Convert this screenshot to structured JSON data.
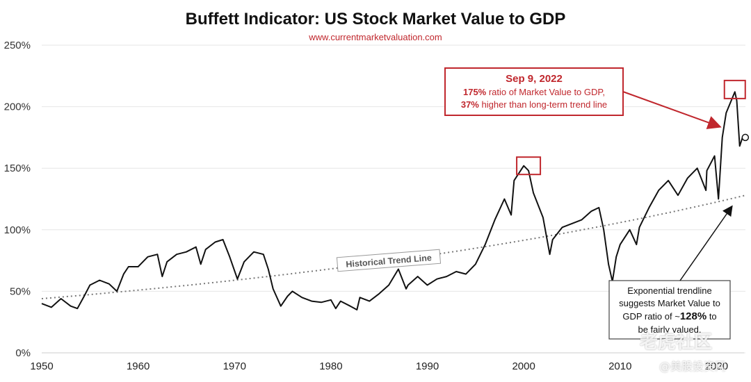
{
  "chart_data": {
    "type": "line",
    "title": "Buffett Indicator: US Stock Market Value to GDP",
    "subtitle": "www.currentmarketvaluation.com",
    "xlabel": "",
    "ylabel": "",
    "xlim": [
      1950,
      2023
    ],
    "ylim": [
      0,
      250
    ],
    "y_ticks": [
      "0%",
      "50%",
      "100%",
      "150%",
      "200%",
      "250%"
    ],
    "x_ticks": [
      "1950",
      "1960",
      "1970",
      "1980",
      "1990",
      "2000",
      "2010",
      "2020"
    ],
    "grid": "horizontal",
    "series": [
      {
        "values_pct": [
          [
            1950,
            40
          ],
          [
            1951,
            37
          ],
          [
            1952,
            44
          ],
          [
            1953,
            38
          ],
          [
            1953.7,
            36
          ],
          [
            1954.4,
            46
          ],
          [
            1955,
            55
          ],
          [
            1956,
            59
          ],
          [
            1957,
            56
          ],
          [
            1957.8,
            50
          ],
          [
            1958.5,
            64
          ],
          [
            1959,
            70
          ],
          [
            1960,
            70
          ],
          [
            1961,
            78
          ],
          [
            1962,
            80
          ],
          [
            1962.5,
            62
          ],
          [
            1963,
            74
          ],
          [
            1964,
            80
          ],
          [
            1965,
            82
          ],
          [
            1966,
            86
          ],
          [
            1966.5,
            72
          ],
          [
            1967,
            84
          ],
          [
            1968,
            90
          ],
          [
            1968.8,
            92
          ],
          [
            1969.5,
            78
          ],
          [
            1970.3,
            60
          ],
          [
            1971,
            74
          ],
          [
            1972,
            82
          ],
          [
            1973,
            80
          ],
          [
            1973.5,
            68
          ],
          [
            1974,
            52
          ],
          [
            1974.8,
            38
          ],
          [
            1975.5,
            46
          ],
          [
            1976,
            50
          ],
          [
            1977,
            45
          ],
          [
            1978,
            42
          ],
          [
            1979,
            41
          ],
          [
            1980,
            43
          ],
          [
            1980.5,
            36
          ],
          [
            1981,
            42
          ],
          [
            1982,
            38
          ],
          [
            1982.7,
            35
          ],
          [
            1983,
            45
          ],
          [
            1984,
            42
          ],
          [
            1985,
            48
          ],
          [
            1986,
            55
          ],
          [
            1987,
            68
          ],
          [
            1987.8,
            52
          ],
          [
            1988,
            55
          ],
          [
            1989,
            62
          ],
          [
            1990,
            55
          ],
          [
            1991,
            60
          ],
          [
            1992,
            62
          ],
          [
            1993,
            66
          ],
          [
            1994,
            64
          ],
          [
            1995,
            72
          ],
          [
            1996,
            88
          ],
          [
            1997,
            108
          ],
          [
            1998,
            125
          ],
          [
            1998.7,
            112
          ],
          [
            1999,
            140
          ],
          [
            2000,
            152
          ],
          [
            2000.5,
            148
          ],
          [
            2001,
            130
          ],
          [
            2002,
            110
          ],
          [
            2002.7,
            80
          ],
          [
            2003,
            92
          ],
          [
            2004,
            102
          ],
          [
            2005,
            105
          ],
          [
            2006,
            108
          ],
          [
            2007,
            115
          ],
          [
            2007.8,
            118
          ],
          [
            2008.3,
            100
          ],
          [
            2008.8,
            72
          ],
          [
            2009.2,
            58
          ],
          [
            2009.6,
            78
          ],
          [
            2010,
            88
          ],
          [
            2011,
            100
          ],
          [
            2011.7,
            88
          ],
          [
            2012,
            102
          ],
          [
            2013,
            118
          ],
          [
            2014,
            132
          ],
          [
            2015,
            140
          ],
          [
            2016,
            128
          ],
          [
            2017,
            142
          ],
          [
            2018,
            150
          ],
          [
            2018.9,
            132
          ],
          [
            2019,
            148
          ],
          [
            2019.8,
            160
          ],
          [
            2020.2,
            125
          ],
          [
            2020.6,
            175
          ],
          [
            2021,
            195
          ],
          [
            2021.9,
            212
          ],
          [
            2022.1,
            205
          ],
          [
            2022.4,
            168
          ],
          [
            2022.7,
            175
          ]
        ]
      }
    ],
    "trendline": {
      "label": "Historical Trend Line",
      "start": [
        1950,
        44
      ],
      "end": [
        2023,
        128
      ]
    },
    "annotations": {
      "peak_2000_year": 2000.5,
      "peak_2000_value": 150,
      "peak_2022_year": 2021.9,
      "peak_2022_value": 210,
      "current_point_year": 2022.7,
      "current_point_value": 175,
      "callout": {
        "date": "Sep 9, 2022",
        "line1_bold": "175%",
        "line1_rest": " ratio of Market Value to GDP,",
        "line2_bold": "37%",
        "line2_rest": " higher than long-term trend line"
      },
      "note": {
        "line1": "Exponential trendline",
        "line2": "suggests Market Value to",
        "line3_a": "GDP ratio of ~",
        "line3_bold": "128%",
        "line3_b": " to",
        "line4": "be fairly valued."
      }
    },
    "colors": {
      "line": "#111111",
      "trend": "#777777",
      "accent": "#c0272d",
      "grid": "#e6e6e6"
    }
  },
  "watermark": {
    "main": "老虎社区",
    "sub": "@美股投资网"
  }
}
